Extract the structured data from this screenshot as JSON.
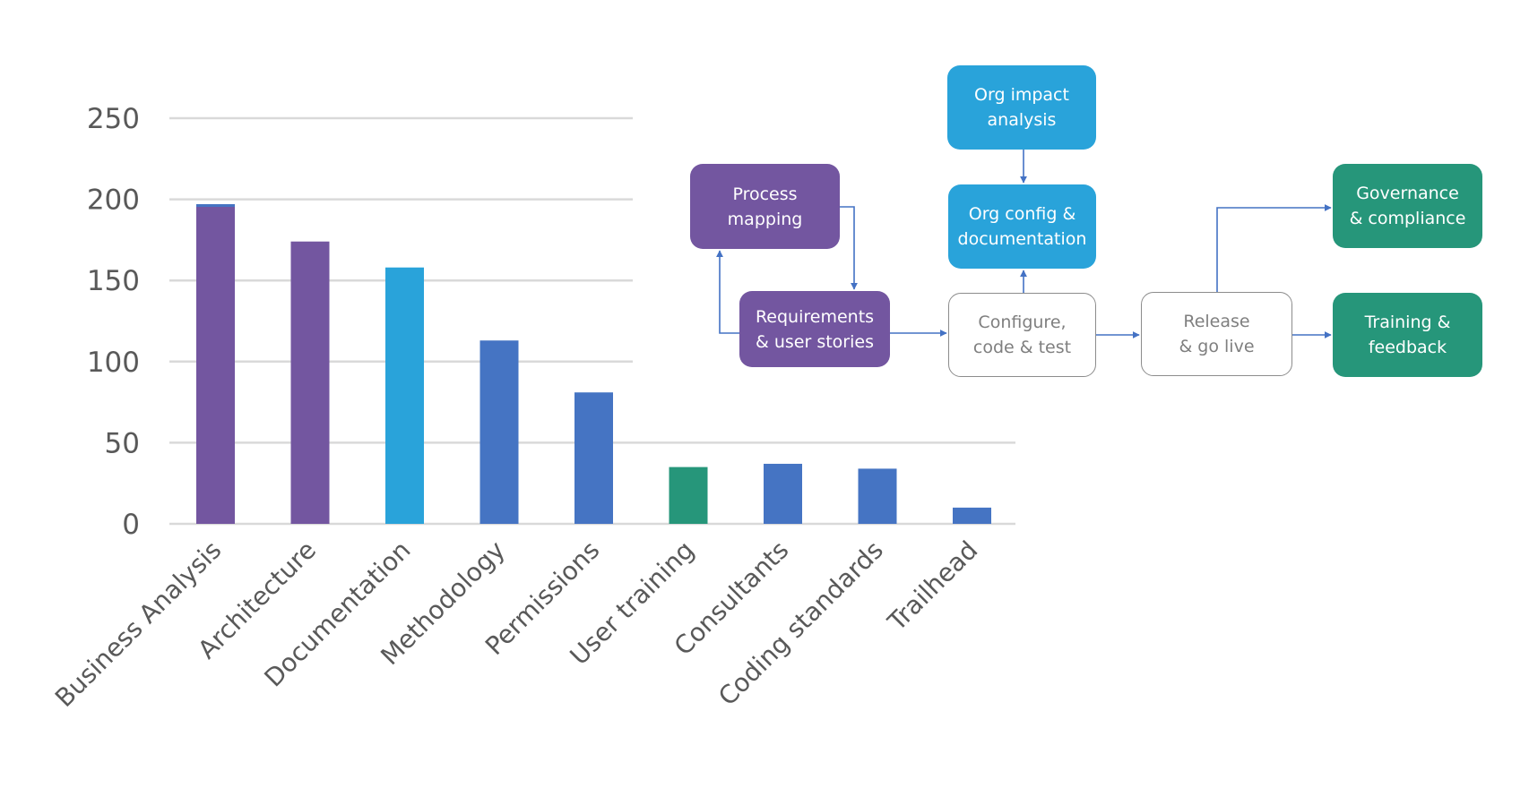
{
  "chart_data": {
    "type": "bar",
    "title": "",
    "xlabel": "",
    "ylabel": "",
    "ylim": [
      0,
      250
    ],
    "yticks": [
      0,
      50,
      100,
      150,
      200,
      250
    ],
    "grid": true,
    "legend": "none",
    "categories": [
      "Business Analysis",
      "Architecture",
      "Documentation",
      "Methodology",
      "Permissions",
      "User training",
      "Consultants",
      "Coding standards",
      "Trailhead"
    ],
    "values": [
      197,
      174,
      158,
      113,
      81,
      35,
      37,
      34,
      10
    ],
    "bar_colors": [
      "#7356A0",
      "#7356A0",
      "#29A3DA",
      "#4574C3",
      "#4574C3",
      "#26967A",
      "#4574C3",
      "#4574C3",
      "#4574C3"
    ]
  },
  "colors": {
    "purple": "#7356A0",
    "cyan": "#29A3DA",
    "blue": "#4574C3",
    "green": "#26967A",
    "gridline": "#d9d9d9",
    "axis_text": "#595959",
    "connector": "#4472C4"
  },
  "diagram": {
    "boxes": {
      "process_mapping": "Process\nmapping",
      "requirements": "Requirements\n& user stories",
      "org_impact": "Org impact\nanalysis",
      "org_config": "Org config &\ndocumentation",
      "configure": "Configure,\ncode & test",
      "release": "Release\n& go live",
      "governance": "Governance\n& compliance",
      "training": "Training &\nfeedback"
    }
  }
}
